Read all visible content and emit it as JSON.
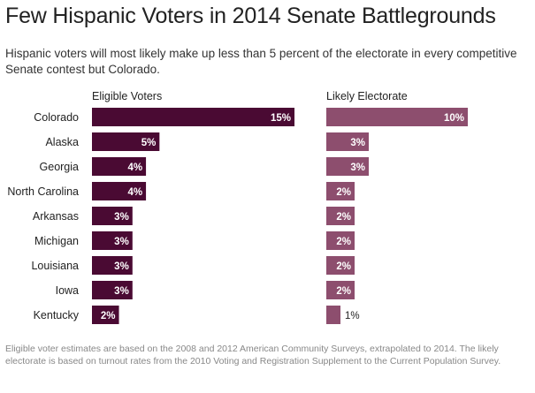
{
  "title": "Few Hispanic Voters in 2014 Senate Battlegrounds",
  "subtitle": "Hispanic voters will most likely make up less than 5 percent of the electorate in every competitive Senate contest but Colorado.",
  "note": "Eligible voter estimates are based on the 2008 and 2012 American Community Surveys, extrapolated to 2014. The likely electorate is based on turnout rates from the 2010 Voting and Registration Supplement to the Current Population Survey.",
  "colors": {
    "eligible": "#4a0a33",
    "likely": "#8d4e6e"
  },
  "chart_data": {
    "type": "bar",
    "orientation": "horizontal",
    "title": "Few Hispanic Voters in 2014 Senate Battlegrounds",
    "categories": [
      "Colorado",
      "Alaska",
      "Georgia",
      "North Carolina",
      "Arkansas",
      "Michigan",
      "Louisiana",
      "Iowa",
      "Kentucky"
    ],
    "series": [
      {
        "name": "Eligible Voters",
        "values": [
          15,
          5,
          4,
          4,
          3,
          3,
          3,
          3,
          2
        ],
        "labels": [
          "15%",
          "5%",
          "4%",
          "4%",
          "3%",
          "3%",
          "3%",
          "3%",
          "2%"
        ]
      },
      {
        "name": "Likely Electorate",
        "values": [
          10,
          3,
          3,
          2,
          2,
          2,
          2,
          2,
          1
        ],
        "labels": [
          "10%",
          "3%",
          "3%",
          "2%",
          "2%",
          "2%",
          "2%",
          "2%",
          "1%"
        ]
      }
    ],
    "units": "percent",
    "xlabel": "",
    "ylabel": ""
  }
}
